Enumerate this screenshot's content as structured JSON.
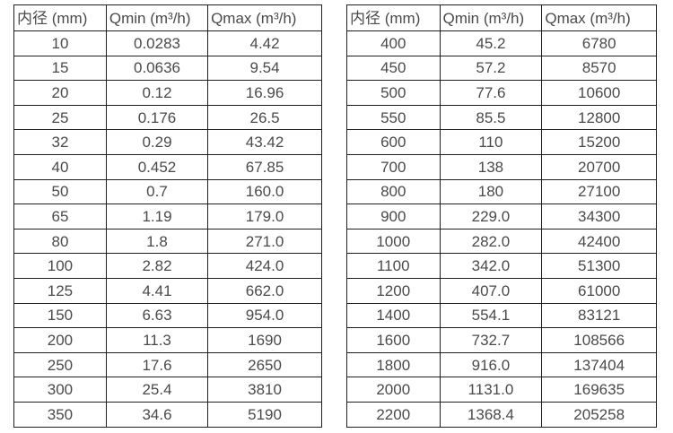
{
  "page": {
    "background_color": "#ffffff",
    "text_color": "#4a4a4a",
    "border_color": "#1f1f1f"
  },
  "tables": [
    {
      "name": "flow-table-small-diameter",
      "headers": [
        "内径 (mm)",
        "Qmin (m³/h)",
        "Qmax (m³/h)"
      ],
      "rows": [
        [
          "10",
          "0.0283",
          "4.42"
        ],
        [
          "15",
          "0.0636",
          "9.54"
        ],
        [
          "20",
          "0.12",
          "16.96"
        ],
        [
          "25",
          "0.176",
          "26.5"
        ],
        [
          "32",
          "0.29",
          "43.42"
        ],
        [
          "40",
          "0.452",
          "67.85"
        ],
        [
          "50",
          "0.7",
          "160.0"
        ],
        [
          "65",
          "1.19",
          "179.0"
        ],
        [
          "80",
          "1.8",
          "271.0"
        ],
        [
          "100",
          "2.82",
          "424.0"
        ],
        [
          "125",
          "4.41",
          "662.0"
        ],
        [
          "150",
          "6.63",
          "954.0"
        ],
        [
          "200",
          "11.3",
          "1690"
        ],
        [
          "250",
          "17.6",
          "2650"
        ],
        [
          "300",
          "25.4",
          "3810"
        ],
        [
          "350",
          "34.6",
          "5190"
        ]
      ]
    },
    {
      "name": "flow-table-large-diameter",
      "headers": [
        "内径 (mm)",
        "Qmin (m³/h)",
        "Qmax (m³/h)"
      ],
      "rows": [
        [
          "400",
          "45.2",
          "6780"
        ],
        [
          "450",
          "57.2",
          "8570"
        ],
        [
          "500",
          "77.6",
          "10600"
        ],
        [
          "550",
          "85.5",
          "12800"
        ],
        [
          "600",
          "110",
          "15200"
        ],
        [
          "700",
          "138",
          "20700"
        ],
        [
          "800",
          "180",
          "27100"
        ],
        [
          "900",
          "229.0",
          "34300"
        ],
        [
          "1000",
          "282.0",
          "42400"
        ],
        [
          "1100",
          "342.0",
          "51300"
        ],
        [
          "1200",
          "407.0",
          "61000"
        ],
        [
          "1400",
          "554.1",
          "83121"
        ],
        [
          "1600",
          "732.7",
          "108566"
        ],
        [
          "1800",
          "916.0",
          "137404"
        ],
        [
          "2000",
          "1131.0",
          "169635"
        ],
        [
          "2200",
          "1368.4",
          "205258"
        ]
      ]
    }
  ]
}
